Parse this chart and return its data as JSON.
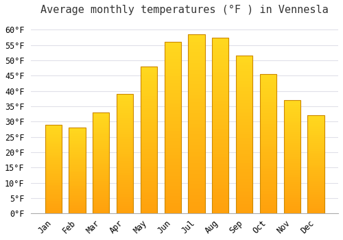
{
  "title": "Average monthly temperatures (°F ) in Vennesla",
  "months": [
    "Jan",
    "Feb",
    "Mar",
    "Apr",
    "May",
    "Jun",
    "Jul",
    "Aug",
    "Sep",
    "Oct",
    "Nov",
    "Dec"
  ],
  "values": [
    29,
    28,
    33,
    39,
    48,
    56,
    58.5,
    57.5,
    51.5,
    45.5,
    37,
    32
  ],
  "bar_color_top": "#FFC125",
  "bar_color_bottom": "#FFA020",
  "bar_edge_color": "#CC8800",
  "background_color": "#FFFFFF",
  "plot_bg_color": "#FFFFFF",
  "grid_color": "#E0E0E8",
  "ylim": [
    0,
    63
  ],
  "yticks": [
    0,
    5,
    10,
    15,
    20,
    25,
    30,
    35,
    40,
    45,
    50,
    55,
    60
  ],
  "ylabel_suffix": "°F",
  "title_fontsize": 11,
  "tick_fontsize": 8.5
}
